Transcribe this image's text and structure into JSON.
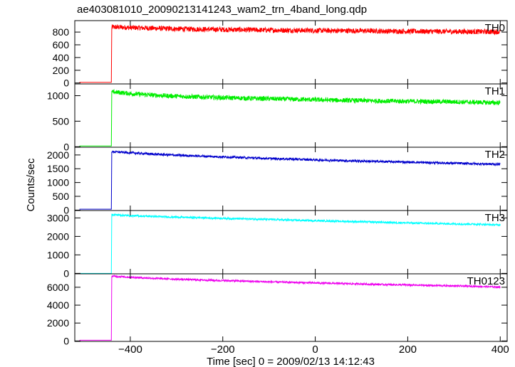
{
  "title": "ae403081010_20090213141243_wam2_trn_4band_long.qdp",
  "ylabel": "Counts/sec",
  "xlabel": "Time [sec] 0 = 2009/02/13 14:12:43",
  "chart_data": {
    "type": "line",
    "title": "ae403081010_20090213141243_wam2_trn_4band_long.qdp",
    "xlabel": "Time [sec] 0 = 2009/02/13 14:12:43",
    "ylabel": "Counts/sec",
    "xlim": [
      -520,
      415
    ],
    "xticks": [
      -400,
      -200,
      0,
      200,
      400
    ],
    "x_tick_labels": [
      "−400",
      "−200",
      "0",
      "200",
      "400"
    ],
    "grid": false,
    "panels": [
      {
        "name": "TH0",
        "color": "#ff0000",
        "ylim": [
          -15,
          980
        ],
        "yticks": [
          0,
          200,
          400,
          600,
          800
        ],
        "x": [
          -510,
          -445,
          -441,
          -440,
          -420,
          -400,
          -350,
          -300,
          -250,
          -200,
          -150,
          -100,
          -50,
          0,
          50,
          100,
          150,
          200,
          250,
          300,
          350,
          400
        ],
        "y": [
          10,
          10,
          10,
          880,
          875,
          870,
          860,
          850,
          845,
          840,
          835,
          830,
          828,
          825,
          822,
          820,
          815,
          812,
          810,
          808,
          806,
          805
        ],
        "noise": 40
      },
      {
        "name": "TH1",
        "color": "#00ee00",
        "ylim": [
          -10,
          1230
        ],
        "yticks": [
          0,
          500,
          1000
        ],
        "x": [
          -510,
          -445,
          -441,
          -440,
          -420,
          -400,
          -350,
          -300,
          -250,
          -200,
          -150,
          -100,
          -50,
          0,
          50,
          100,
          150,
          200,
          250,
          300,
          350,
          400
        ],
        "y": [
          15,
          15,
          15,
          1070,
          1060,
          1040,
          1010,
          990,
          975,
          960,
          950,
          940,
          930,
          920,
          910,
          905,
          895,
          890,
          885,
          880,
          870,
          860
        ],
        "noise": 45
      },
      {
        "name": "TH2",
        "color": "#0000cc",
        "ylim": [
          -15,
          2280
        ],
        "yticks": [
          0,
          500,
          1000,
          1500,
          2000
        ],
        "x": [
          -510,
          -445,
          -441,
          -440,
          -420,
          -400,
          -350,
          -300,
          -250,
          -200,
          -150,
          -100,
          -50,
          0,
          50,
          100,
          150,
          200,
          250,
          300,
          350,
          400
        ],
        "y": [
          35,
          35,
          35,
          2120,
          2100,
          2080,
          2030,
          1990,
          1960,
          1930,
          1900,
          1870,
          1850,
          1820,
          1800,
          1780,
          1760,
          1740,
          1720,
          1700,
          1680,
          1660
        ],
        "noise": 40
      },
      {
        "name": "TH3",
        "color": "#00ffff",
        "ylim": [
          -25,
          3400
        ],
        "yticks": [
          0,
          1000,
          2000,
          3000
        ],
        "x": [
          -510,
          -445,
          -441,
          -440,
          -420,
          -400,
          -350,
          -300,
          -250,
          -200,
          -150,
          -100,
          -50,
          0,
          50,
          100,
          150,
          200,
          250,
          300,
          350,
          400
        ],
        "y": [
          0,
          0,
          0,
          3180,
          3150,
          3120,
          3080,
          3040,
          3010,
          2980,
          2950,
          2920,
          2880,
          2850,
          2820,
          2790,
          2760,
          2730,
          2700,
          2680,
          2660,
          2620
        ],
        "noise": 50
      },
      {
        "name": "TH0123",
        "color": "#ee00ee",
        "ylim": [
          -50,
          7500
        ],
        "yticks": [
          0,
          2000,
          4000,
          6000
        ],
        "x": [
          -510,
          -445,
          -441,
          -440,
          -420,
          -400,
          -350,
          -300,
          -250,
          -200,
          -150,
          -100,
          -50,
          0,
          50,
          100,
          150,
          200,
          250,
          300,
          350,
          400
        ],
        "y": [
          80,
          80,
          80,
          7250,
          7180,
          7120,
          7000,
          6900,
          6820,
          6750,
          6680,
          6600,
          6550,
          6480,
          6420,
          6370,
          6300,
          6250,
          6200,
          6150,
          6100,
          6020
        ],
        "noise": 100
      }
    ]
  }
}
